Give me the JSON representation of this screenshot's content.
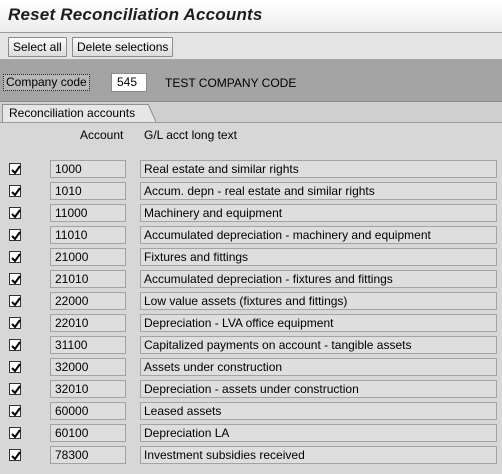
{
  "window": {
    "title": "Reset Reconciliation Accounts"
  },
  "toolbar": {
    "select_all": "Select all",
    "delete_selections": "Delete selections"
  },
  "header": {
    "company_code_label": "Company code",
    "company_code_value": "545",
    "company_name": "TEST COMPANY CODE"
  },
  "tab": {
    "label": "Reconciliation accounts"
  },
  "table": {
    "columns": {
      "account": "Account",
      "text": "G/L acct long text"
    },
    "rows": [
      {
        "checked": true,
        "account": "1000",
        "text": "Real estate and similar rights"
      },
      {
        "checked": true,
        "account": "1010",
        "text": "Accum. depn - real estate and similar rights"
      },
      {
        "checked": true,
        "account": "11000",
        "text": "Machinery and equipment"
      },
      {
        "checked": true,
        "account": "11010",
        "text": "Accumulated depreciation - machinery and equipment"
      },
      {
        "checked": true,
        "account": "21000",
        "text": "Fixtures and fittings"
      },
      {
        "checked": true,
        "account": "21010",
        "text": "Accumulated depreciation - fixtures and fittings"
      },
      {
        "checked": true,
        "account": "22000",
        "text": "Low value assets (fixtures and fittings)"
      },
      {
        "checked": true,
        "account": "22010",
        "text": "Depreciation - LVA office equipment"
      },
      {
        "checked": true,
        "account": "31100",
        "text": "Capitalized payments on account - tangible assets"
      },
      {
        "checked": true,
        "account": "32000",
        "text": "Assets under construction"
      },
      {
        "checked": true,
        "account": "32010",
        "text": "Depreciation - assets under construction"
      },
      {
        "checked": true,
        "account": "60000",
        "text": "Leased assets"
      },
      {
        "checked": true,
        "account": "60100",
        "text": "Depreciation LA"
      },
      {
        "checked": true,
        "account": "78300",
        "text": "Investment subsidies received"
      }
    ]
  }
}
